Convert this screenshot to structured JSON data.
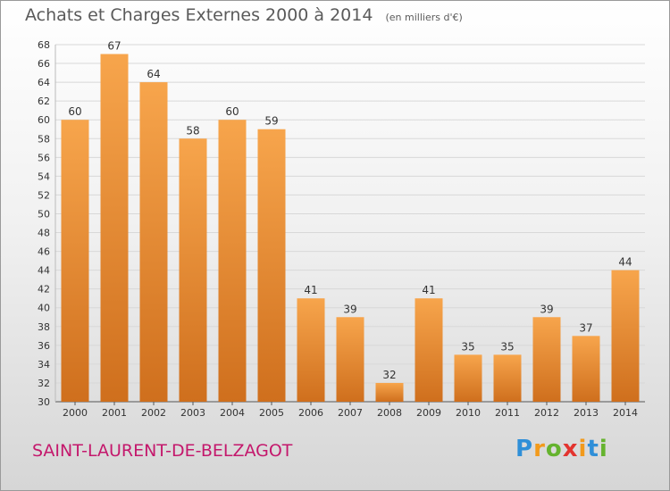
{
  "title": "Achats et Charges Externes 2000 à 2014",
  "unit": "(en milliers d'€)",
  "commune": "SAINT-LAURENT-DE-BELZAGOT",
  "logo": {
    "letters": [
      {
        "char": "P",
        "color": "#2f8fd8"
      },
      {
        "char": "r",
        "color": "#f29a1b"
      },
      {
        "char": "o",
        "color": "#65b32e"
      },
      {
        "char": "x",
        "color": "#e3342f"
      },
      {
        "char": "i",
        "color": "#f29a1b"
      },
      {
        "char": "t",
        "color": "#2f8fd8"
      },
      {
        "char": "i",
        "color": "#65b32e"
      }
    ]
  },
  "colors": {
    "bar_top": "#f7a54c",
    "bar_bottom": "#cf6f1d",
    "grid": "#d8d8d8",
    "axis_text": "#333333"
  },
  "chart_data": {
    "type": "bar",
    "categories": [
      "2000",
      "2001",
      "2002",
      "2003",
      "2004",
      "2005",
      "2006",
      "2007",
      "2008",
      "2009",
      "2010",
      "2011",
      "2012",
      "2013",
      "2014"
    ],
    "values": [
      60,
      67,
      64,
      58,
      60,
      59,
      41,
      39,
      32,
      41,
      35,
      35,
      39,
      37,
      44
    ],
    "ylim": [
      30,
      68
    ],
    "yticks": [
      30,
      32,
      34,
      36,
      38,
      40,
      42,
      44,
      46,
      48,
      50,
      52,
      54,
      56,
      58,
      60,
      62,
      64,
      66,
      68
    ],
    "grid": true,
    "data_labels": true
  }
}
